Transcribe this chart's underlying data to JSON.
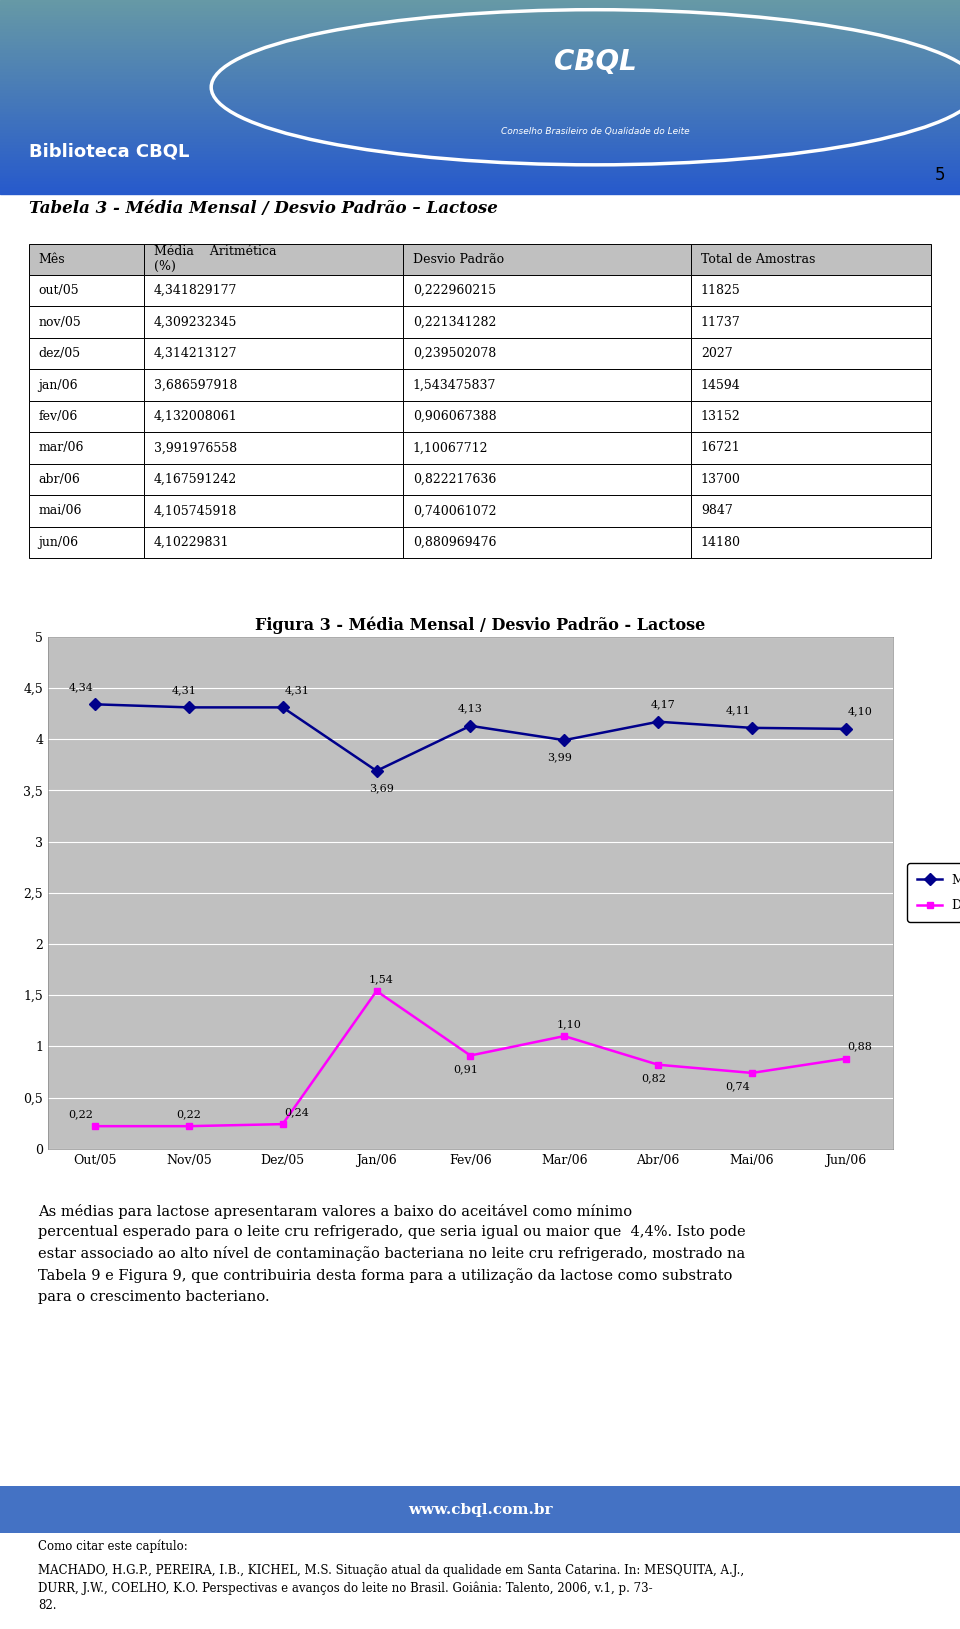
{
  "title_table": "Tabela 3 - Média Mensal / Desvio Padrão – Lactose",
  "table_headers": [
    "Mês",
    "Média    Aritmética\n(%)",
    "Desvio Padrão",
    "Total de Amostras"
  ],
  "table_rows": [
    [
      "out/05",
      "4,341829177",
      "0,222960215",
      "11825"
    ],
    [
      "nov/05",
      "4,309232345",
      "0,221341282",
      "11737"
    ],
    [
      "dez/05",
      "4,314213127",
      "0,239502078",
      "2027"
    ],
    [
      "jan/06",
      "3,686597918",
      "1,543475837",
      "14594"
    ],
    [
      "fev/06",
      "4,132008061",
      "0,906067388",
      "13152"
    ],
    [
      "mar/06",
      "3,991976558",
      "1,10067712",
      "16721"
    ],
    [
      "abr/06",
      "4,167591242",
      "0,822217636",
      "13700"
    ],
    [
      "mai/06",
      "4,105745918",
      "0,740061072",
      "9847"
    ],
    [
      "jun/06",
      "4,10229831",
      "0,880969476",
      "14180"
    ]
  ],
  "chart_title": "Figura 3 - Média Mensal / Desvio Padrão - Lactose",
  "categories": [
    "Out/05",
    "Nov/05",
    "Dez/05",
    "Jan/06",
    "Fev/06",
    "Mar/06",
    "Abr/06",
    "Mai/06",
    "Jun/06"
  ],
  "media_values": [
    4.34,
    4.31,
    4.31,
    3.69,
    4.13,
    3.99,
    4.17,
    4.11,
    4.1
  ],
  "media_labels": [
    "4,34",
    "4,31",
    "4,31",
    "3,69",
    "4,13",
    "3,99",
    "4,17",
    "4,11",
    "4,10"
  ],
  "desvio_values": [
    0.22,
    0.22,
    0.24,
    1.54,
    0.91,
    1.1,
    0.82,
    0.74,
    0.88
  ],
  "desvio_labels": [
    "0,22",
    "0,22",
    "0,24",
    "1,54",
    "0,91",
    "1,10",
    "0,82",
    "0,74",
    "0,88"
  ],
  "media_color": "#00008B",
  "desvio_color": "#FF00FF",
  "chart_bg": "#C0C0C0",
  "ylim": [
    0,
    5
  ],
  "ytick_vals": [
    0,
    0.5,
    1.0,
    1.5,
    2.0,
    2.5,
    3.0,
    3.5,
    4.0,
    4.5,
    5.0
  ],
  "ytick_labels": [
    "0",
    "0,5",
    "1",
    "1,5",
    "2",
    "2,5",
    "3",
    "3,5",
    "4",
    "4,5",
    "5"
  ],
  "legend_media": "Média Aritmética (%)",
  "legend_desvio": "Desvio Padrão",
  "body_text": "As médias para lactose apresentaram valores a baixo do aceitável como mínimo\npercentual esperado para o leite cru refrigerado, que seria igual ou maior que  4,4%. Isto pode\nestar associado ao alto nível de contaminação bacteriana no leite cru refrigerado, mostrado na\nTabela 9 e Figura 9, que contribuiria desta forma para a utilização da lactose como substrato\npara o crescimento bacteriano.",
  "footer_cite_label": "Como citar este capítulo:",
  "footer_cite_text": "MACHADO, H.G.P., PEREIRA, I.B., KICHEL, M.S. Situação atual da qualidade em Santa Catarina. In: MESQUITA, A.J.,\nDURR, J.W., COELHO, K.O. Perspectivas e avanços do leite no Brasil. Goiânia: Talento, 2006, v.1, p. 73-\n82.",
  "header_bg": "#4472C4",
  "page_number": "5",
  "website": "www.cbql.com.br"
}
